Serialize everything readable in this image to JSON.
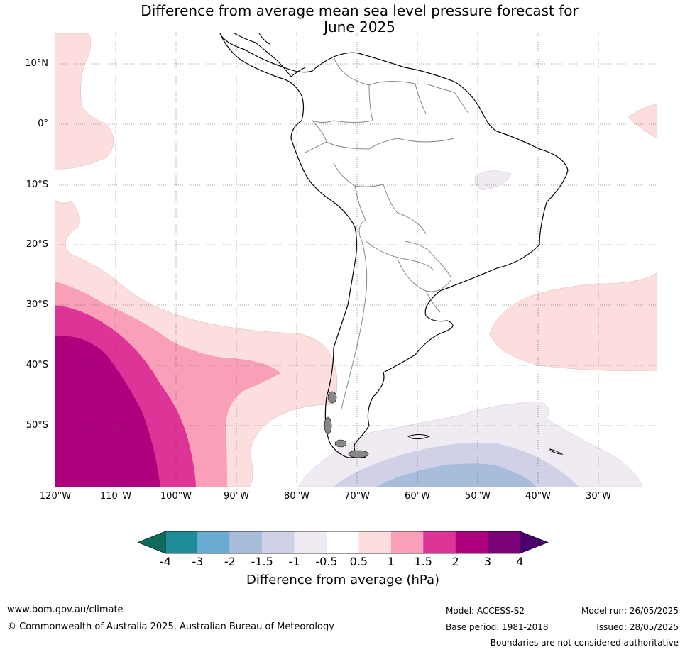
{
  "title_line1": "Difference from average mean sea level pressure forecast for",
  "title_line2": "June 2025",
  "lat_labels": [
    "10°N",
    "0°",
    "10°S",
    "20°S",
    "30°S",
    "40°S",
    "50°S"
  ],
  "lon_labels": [
    "120°W",
    "110°W",
    "100°W",
    "90°W",
    "80°W",
    "70°W",
    "60°W",
    "50°W",
    "40°W",
    "30°W"
  ],
  "colorbar": {
    "ticks": [
      "-4",
      "-3",
      "-2",
      "-1.5",
      "-1",
      "-0.5",
      "0.5",
      "1",
      "1.5",
      "2",
      "3",
      "4"
    ],
    "colors": [
      "#1e8c98",
      "#6aabd2",
      "#a8bcdc",
      "#d0d1e6",
      "#f0ebf2",
      "#ffffff",
      "#fddede",
      "#f99fb8",
      "#de3497",
      "#ae017e",
      "#7a0177"
    ],
    "low_extend_color": "#0e6b5a",
    "high_extend_color": "#49006a",
    "label": "Difference from average (hPa)"
  },
  "footer": {
    "url": "www.bom.gov.au/climate",
    "copyright": "© Commonwealth of Australia 2025, Australian Bureau of Meteorology",
    "model": "Model: ACCESS-S2",
    "base_period": "Base period: 1981-2018",
    "model_run": "Model run: 26/05/2025",
    "issued": "Issued: 28/05/2025",
    "disclaimer": "Boundaries are not considered authoritative"
  }
}
